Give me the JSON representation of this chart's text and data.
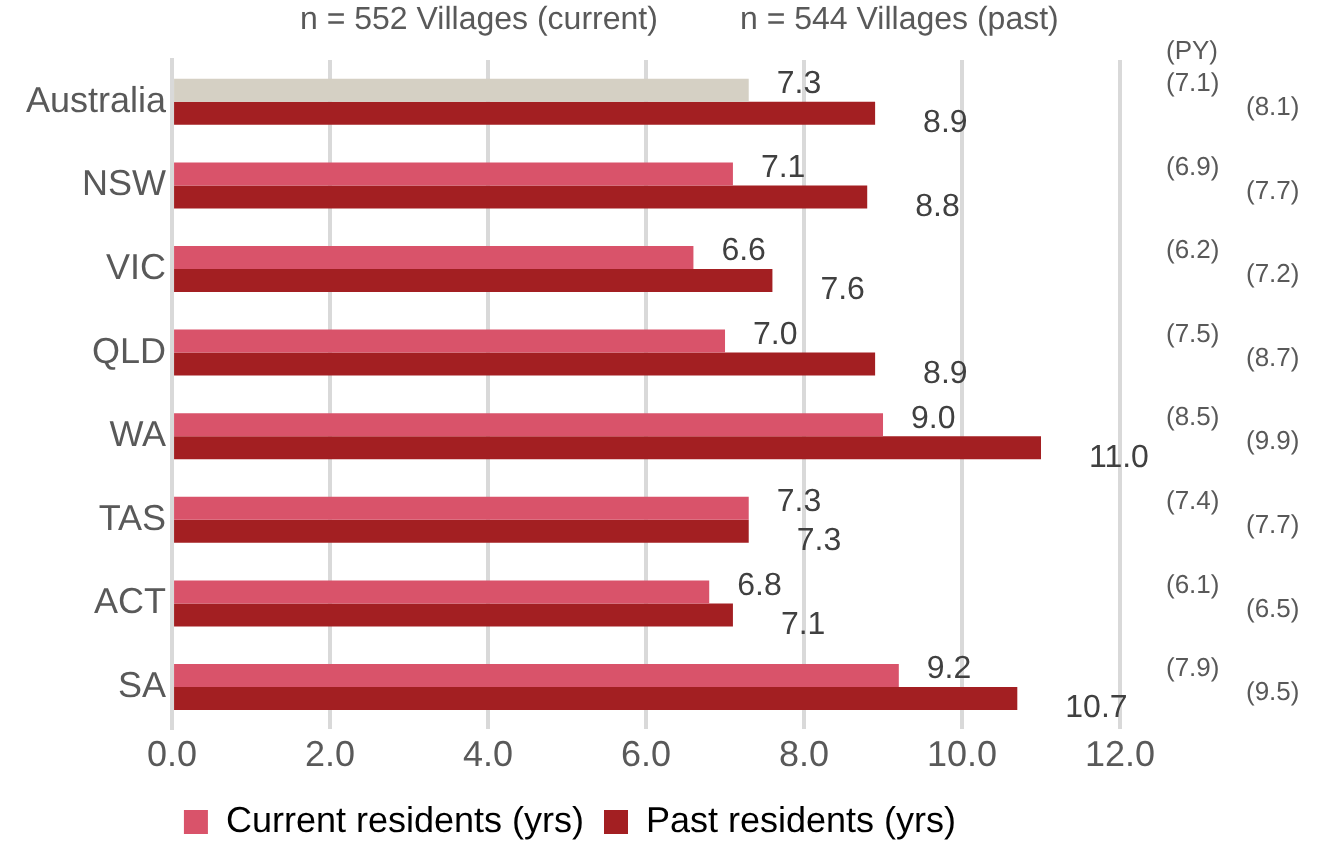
{
  "chart_data": {
    "type": "bar",
    "orientation": "horizontal",
    "categories": [
      "Australia",
      "NSW",
      "VIC",
      "QLD",
      "WA",
      "TAS",
      "ACT",
      "SA"
    ],
    "series": [
      {
        "name": "Current residents (yrs)",
        "color": "#d9536a",
        "colors": [
          "#d5d0c4",
          "#d9536a",
          "#d9536a",
          "#d9536a",
          "#d9536a",
          "#d9536a",
          "#d9536a",
          "#d9536a"
        ],
        "values": [
          7.3,
          7.1,
          6.6,
          7.0,
          9.0,
          7.3,
          6.8,
          9.2
        ],
        "value_labels": [
          "7.3",
          "7.1",
          "6.6",
          "7.0",
          "9.0",
          "7.3",
          "6.8",
          "9.2"
        ]
      },
      {
        "name": "Past residents (yrs)",
        "color": "#a31f22",
        "values": [
          8.9,
          8.8,
          7.6,
          8.9,
          11.0,
          7.3,
          7.1,
          10.7
        ],
        "value_labels": [
          "8.9",
          "8.8",
          "7.6",
          "8.9",
          "11.0",
          "7.3",
          "7.1",
          "10.7"
        ]
      }
    ],
    "xlim": [
      0,
      12
    ],
    "xticks": [
      {
        "value": 0,
        "label": "0.0"
      },
      {
        "value": 2,
        "label": "2.0"
      },
      {
        "value": 4,
        "label": "4.0"
      },
      {
        "value": 6,
        "label": "6.0"
      },
      {
        "value": 8,
        "label": "8.0"
      },
      {
        "value": 10,
        "label": "10.0"
      },
      {
        "value": 12,
        "label": "12.0"
      }
    ],
    "grid": "x",
    "legend": "bottom",
    "annotations": [
      "n = 552 Villages (current)",
      "n = 544 Villages (past)",
      "(PY)",
      "(7.1)",
      "(8.1)",
      "(6.9)",
      "(7.7)",
      "(6.2)",
      "(7.2)",
      "(7.5)",
      "(8.7)",
      "(8.5)",
      "(9.9)",
      "(7.4)",
      "(7.7)",
      "(6.1)",
      "(6.5)",
      "(7.9)",
      "(9.5)"
    ]
  }
}
